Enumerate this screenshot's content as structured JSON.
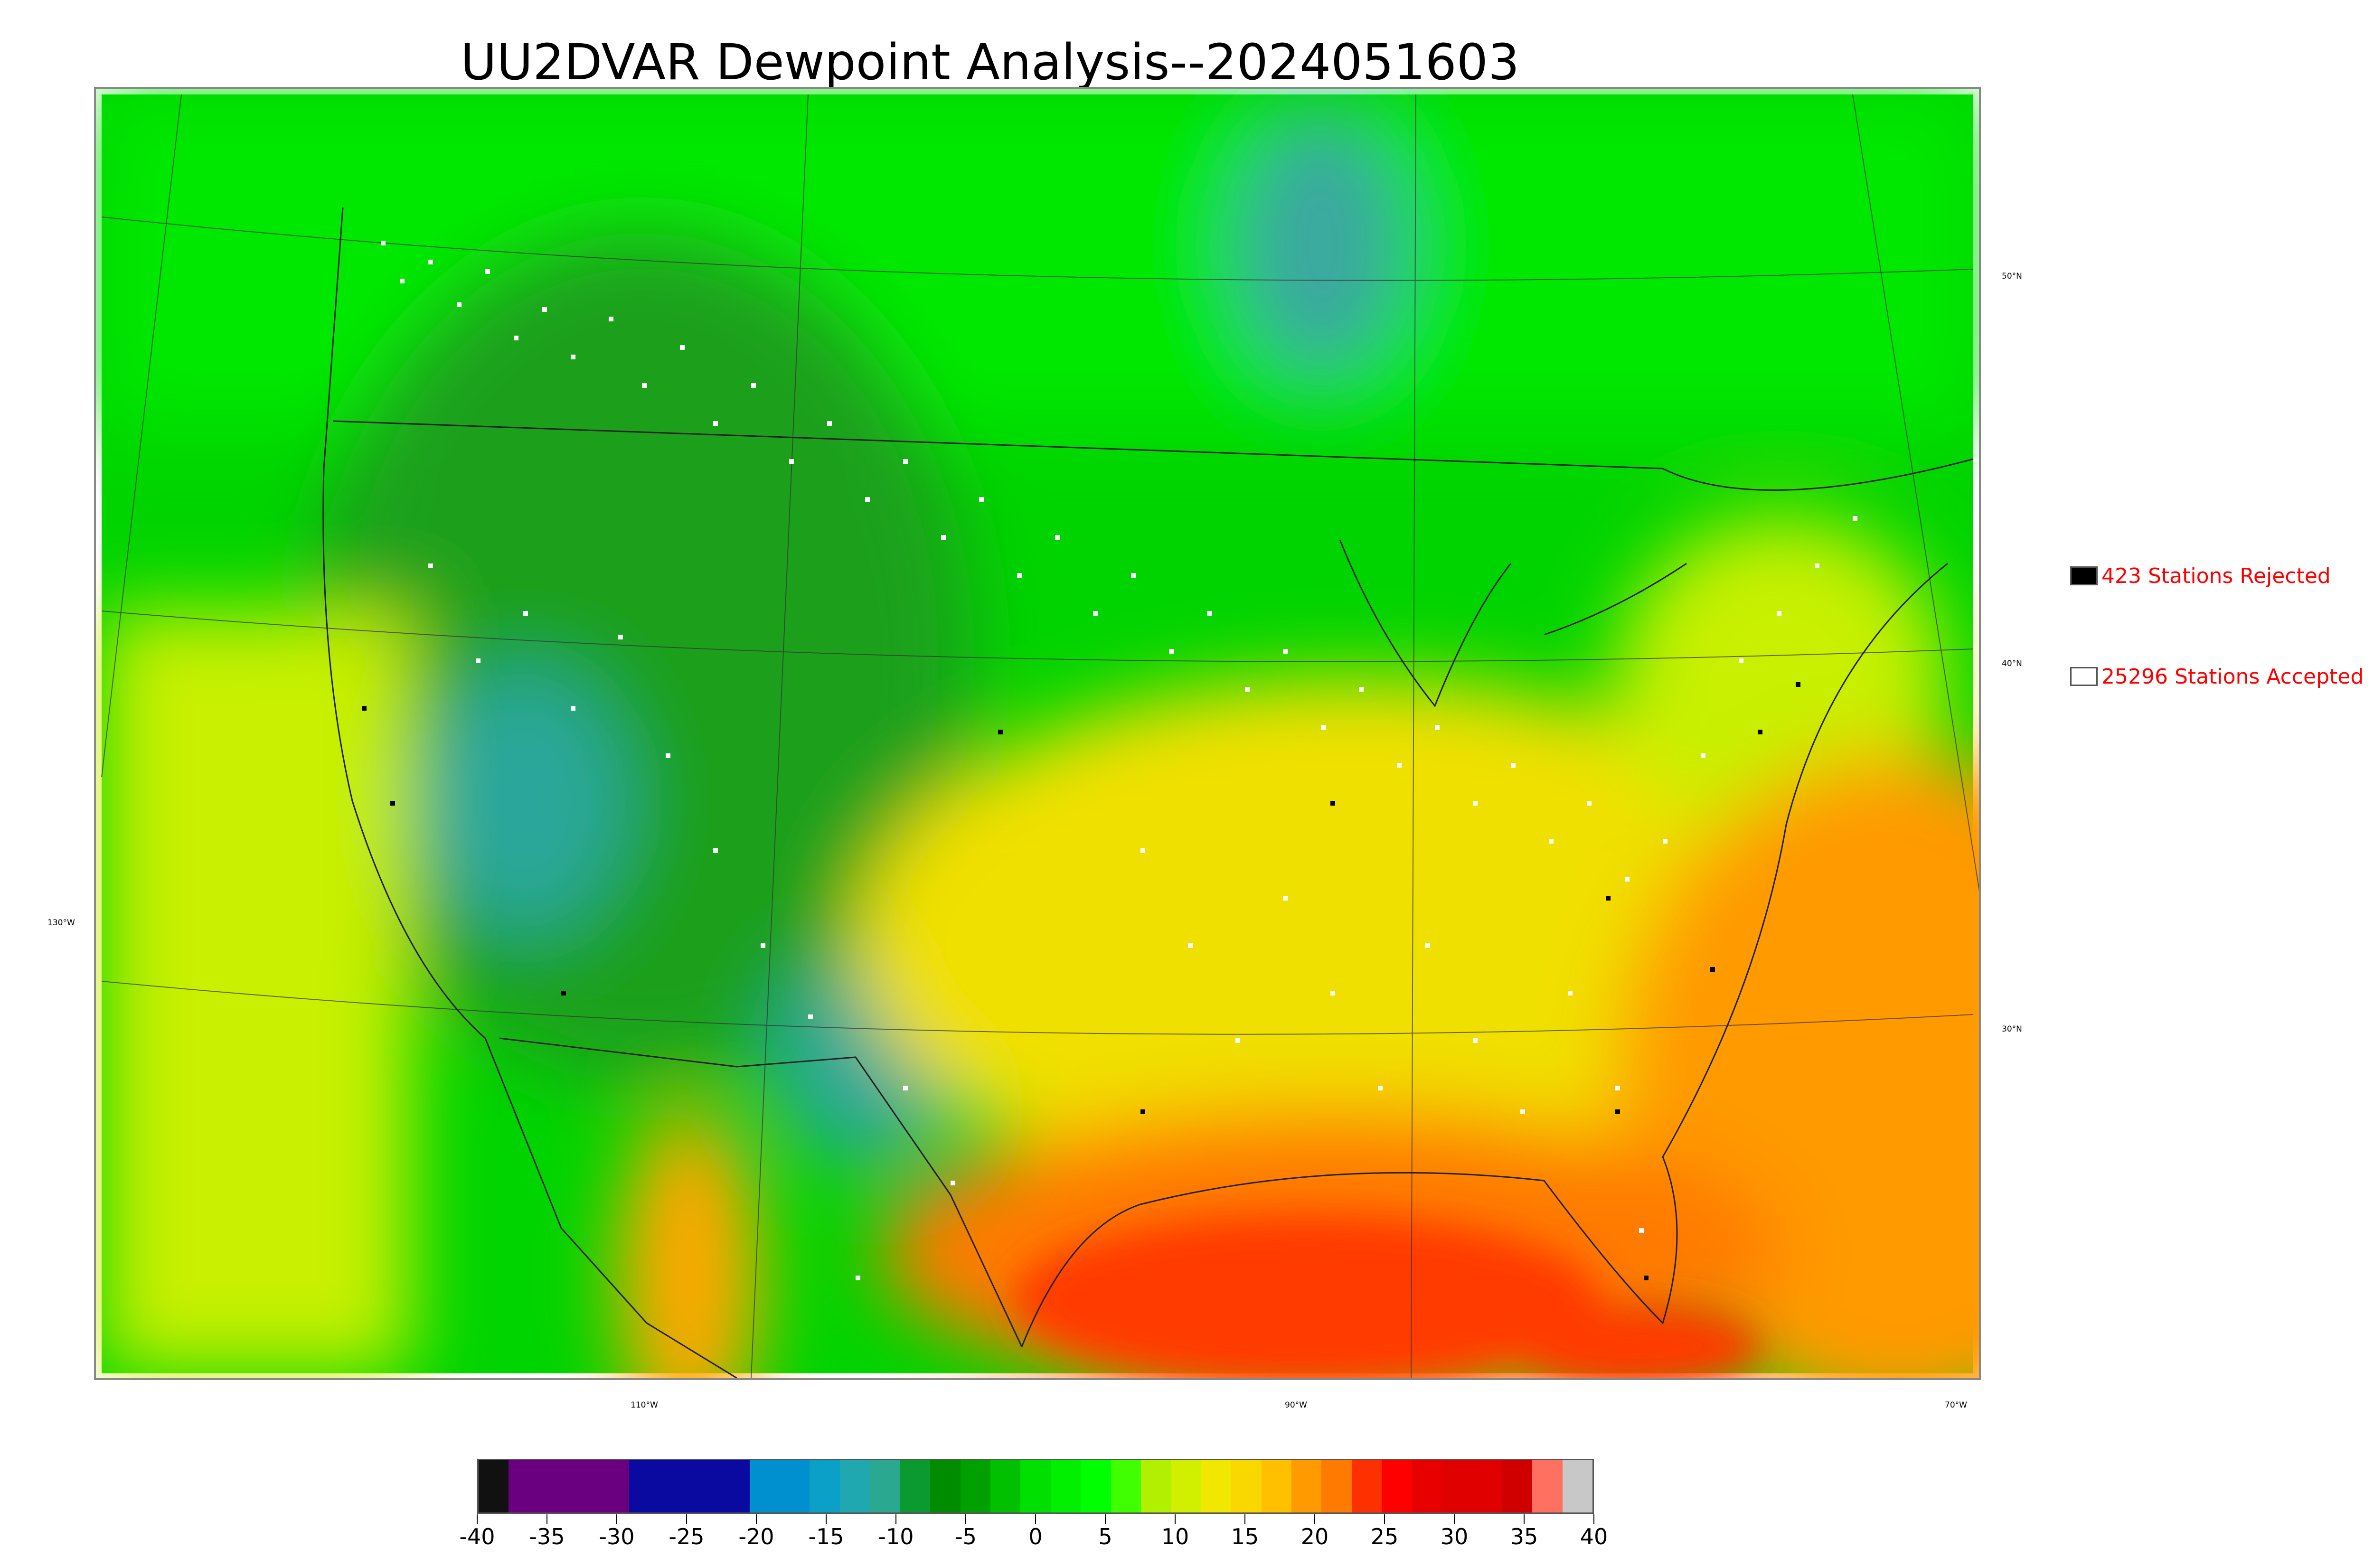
{
  "title": "UU2DVAR Dewpoint Analysis--2024051603",
  "map": {
    "lat_labels": [
      "50°N",
      "40°N",
      "30°N"
    ],
    "lon_labels": [
      "130°W",
      "110°W",
      "90°W",
      "70°W"
    ],
    "colors": {
      "dry_green": "#1ea01e",
      "green": "#00d400",
      "bright_green": "#00ff00",
      "teal": "#2aa79a",
      "yellow_green": "#c8f000",
      "yellow": "#f0e000",
      "orange": "#ff9a00",
      "red": "#ff3a00",
      "accepted_marker": "#ffffff",
      "rejected_marker": "#000000"
    }
  },
  "legend": {
    "rejected": {
      "label": "423 Stations Rejected",
      "color": "#000000"
    },
    "accepted": {
      "label": "25296 Stations Accepted",
      "color": "#ffffff"
    }
  },
  "colorbar": {
    "ticks": [
      "-40",
      "-35",
      "-30",
      "-25",
      "-20",
      "-15",
      "-10",
      "-5",
      "0",
      "5",
      "10",
      "15",
      "20",
      "25",
      "30",
      "35",
      "40"
    ],
    "range": [
      -40,
      40
    ],
    "colors": [
      "#111111",
      "#6a0080",
      "#6a0080",
      "#6a0080",
      "#6a0080",
      "#0a0aa0",
      "#0a0aa0",
      "#0a0aa0",
      "#0a0aa0",
      "#0090d0",
      "#0090d0",
      "#0aa0c8",
      "#20a8b0",
      "#2aa890",
      "#0a9a30",
      "#008c00",
      "#00a000",
      "#00c000",
      "#00e000",
      "#00f000",
      "#00ff00",
      "#40ff00",
      "#b0f000",
      "#d0f000",
      "#f0e800",
      "#f8d800",
      "#ffc000",
      "#ff9a00",
      "#ff7a00",
      "#ff3000",
      "#ff0000",
      "#e80000",
      "#e00000",
      "#e00000",
      "#d00000",
      "#ff7060",
      "#c8c8c8"
    ]
  }
}
